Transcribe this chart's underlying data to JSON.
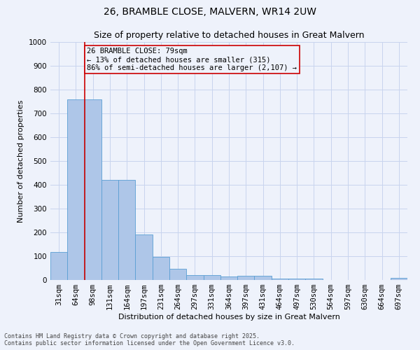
{
  "title": "26, BRAMBLE CLOSE, MALVERN, WR14 2UW",
  "subtitle": "Size of property relative to detached houses in Great Malvern",
  "xlabel": "Distribution of detached houses by size in Great Malvern",
  "ylabel": "Number of detached properties",
  "categories": [
    "31sqm",
    "64sqm",
    "98sqm",
    "131sqm",
    "164sqm",
    "197sqm",
    "231sqm",
    "264sqm",
    "297sqm",
    "331sqm",
    "364sqm",
    "397sqm",
    "431sqm",
    "464sqm",
    "497sqm",
    "530sqm",
    "564sqm",
    "597sqm",
    "630sqm",
    "664sqm",
    "697sqm"
  ],
  "values": [
    117,
    758,
    760,
    420,
    420,
    190,
    97,
    47,
    22,
    22,
    15,
    18,
    18,
    7,
    7,
    7,
    0,
    0,
    0,
    0,
    8
  ],
  "bar_color": "#aec6e8",
  "bar_edge_color": "#5a9fd4",
  "background_color": "#eef2fb",
  "grid_color": "#c8d4ee",
  "property_line_x": 1.5,
  "property_line_color": "#cc0000",
  "annotation_text": "26 BRAMBLE CLOSE: 79sqm\n← 13% of detached houses are smaller (315)\n86% of semi-detached houses are larger (2,107) →",
  "annotation_box_color": "#cc0000",
  "ylim": [
    0,
    1000
  ],
  "yticks": [
    0,
    100,
    200,
    300,
    400,
    500,
    600,
    700,
    800,
    900,
    1000
  ],
  "footnote1": "Contains HM Land Registry data © Crown copyright and database right 2025.",
  "footnote2": "Contains public sector information licensed under the Open Government Licence v3.0.",
  "title_fontsize": 10,
  "subtitle_fontsize": 9,
  "axis_label_fontsize": 8,
  "tick_fontsize": 7.5,
  "annot_fontsize": 7.5
}
